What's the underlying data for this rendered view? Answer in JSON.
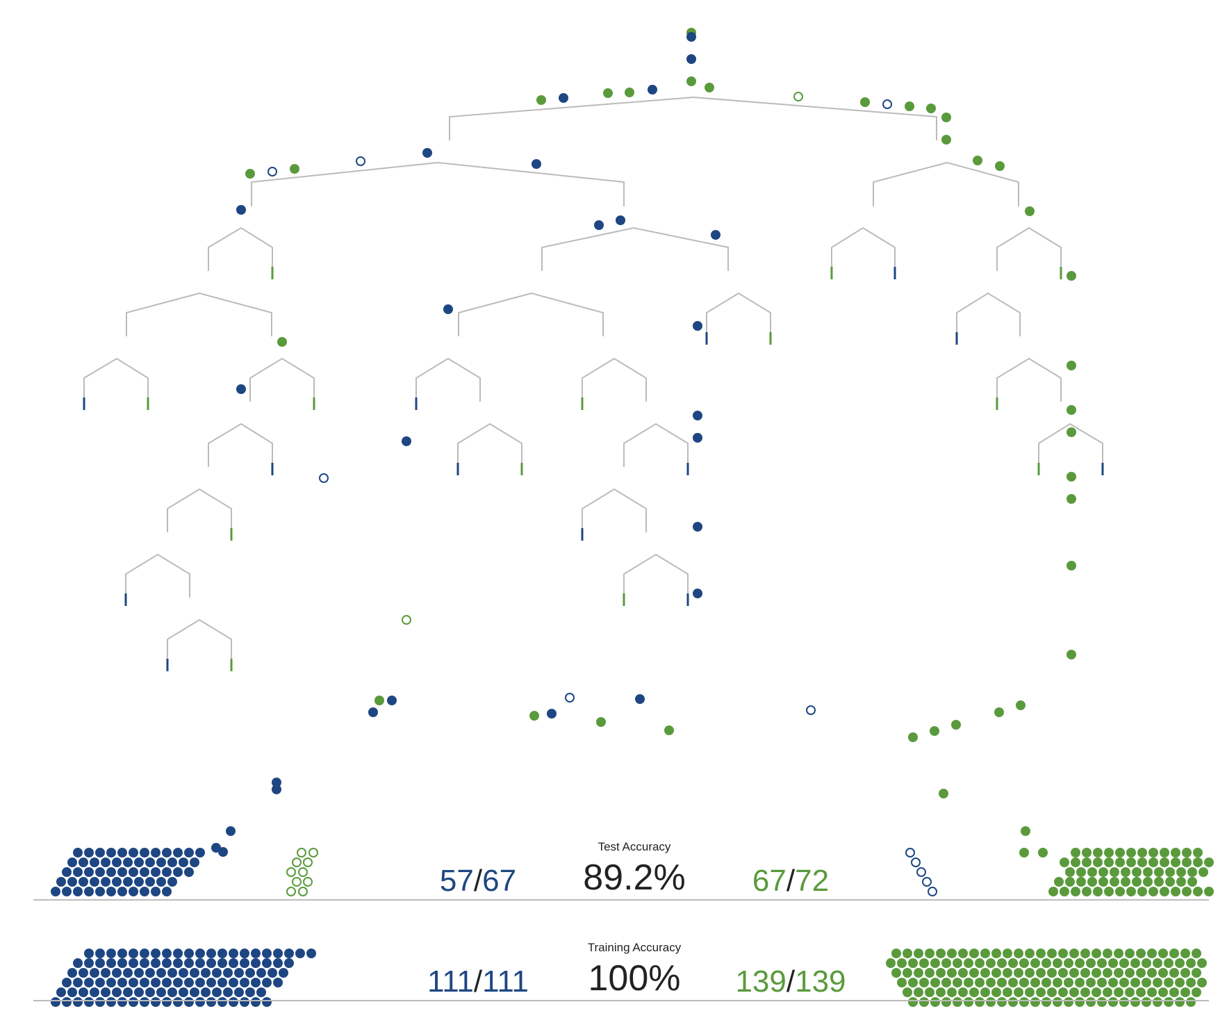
{
  "colors": {
    "blue": "#1e4682",
    "green": "#5a9a3c",
    "branch": "#bbbbbb",
    "baseline": "#bbbbbb",
    "text": "#333333"
  },
  "test": {
    "title": "Test Accuracy",
    "value": "89.2%",
    "blue_correct": "57",
    "blue_total": "67",
    "green_correct": "67",
    "green_total": "72",
    "separator": "/"
  },
  "training": {
    "title": "Training Accuracy",
    "value": "100%",
    "blue_correct": "111",
    "blue_total": "111",
    "green_correct": "139",
    "green_total": "139",
    "separator": "/"
  }
}
